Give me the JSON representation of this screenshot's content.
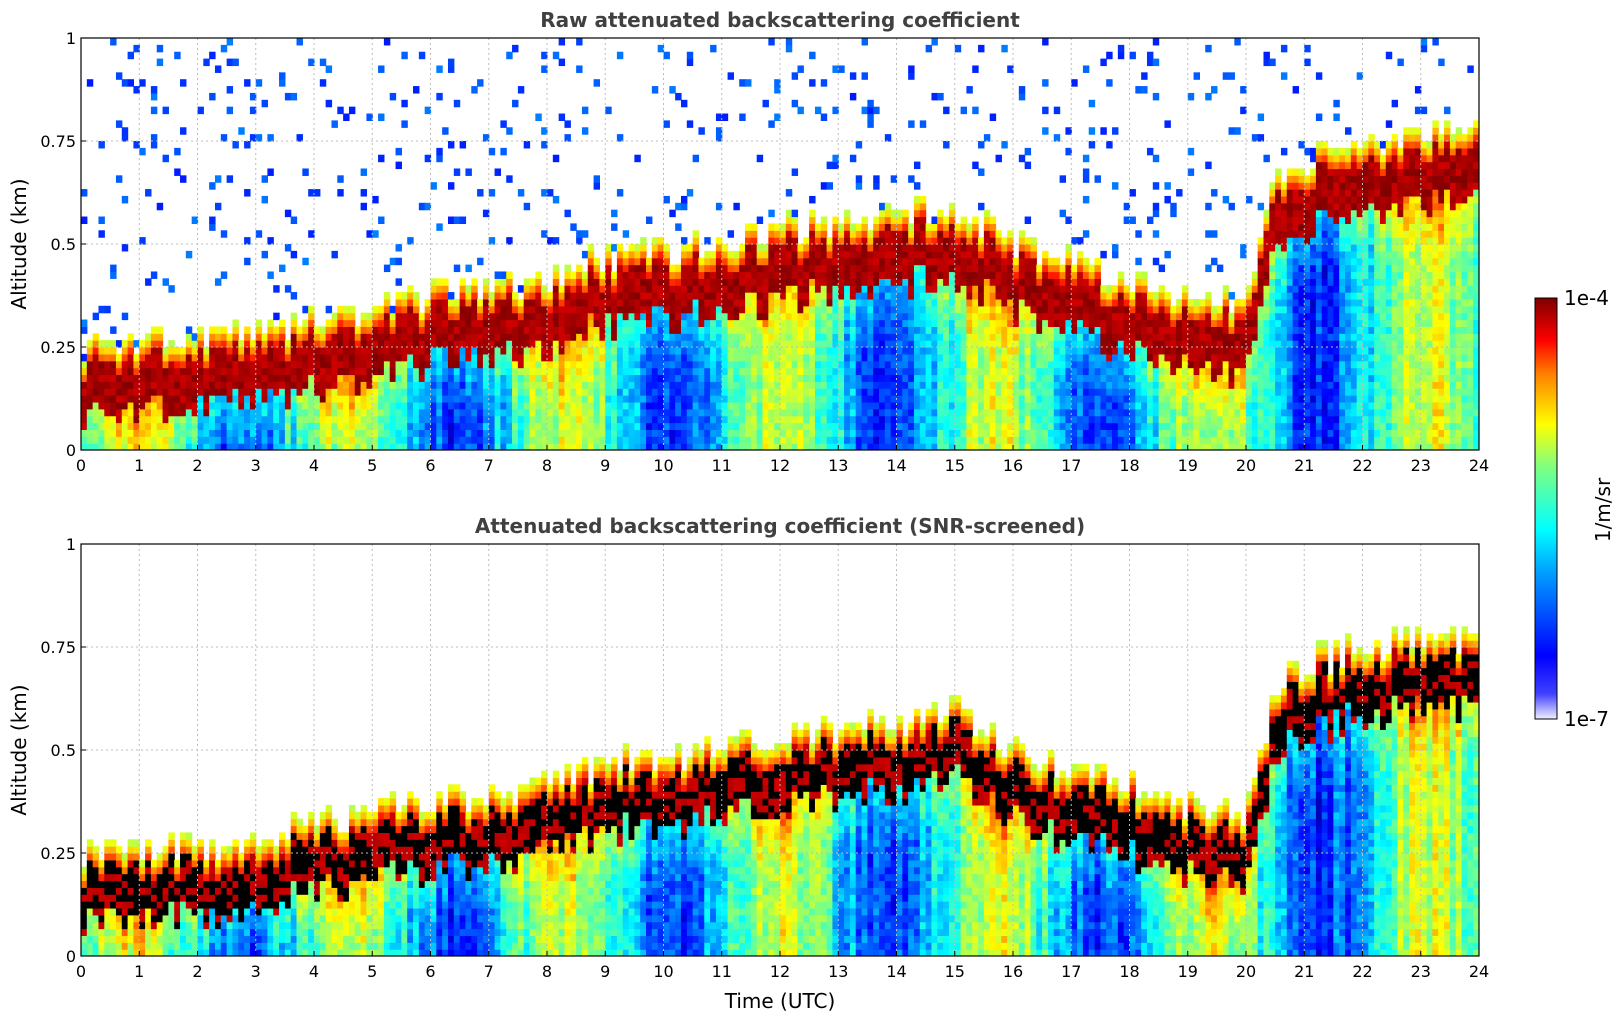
{
  "figure": {
    "colorbar": {
      "top_label": "1e-4",
      "bottom_label": "1e-7",
      "unit_label": "1/m/sr"
    },
    "colors": {
      "cmap": "jet",
      "low": "#f0f0ff",
      "high": "#7f0000",
      "saturated_screened": "#000000"
    }
  },
  "chart_data": [
    {
      "type": "heatmap",
      "title": "Raw attenuated backscattering coefficient",
      "xlabel": "",
      "ylabel": "Altitude (km)",
      "xlim": [
        0,
        24
      ],
      "ylim": [
        0,
        1
      ],
      "x_ticks": [
        "0",
        "1",
        "2",
        "3",
        "4",
        "5",
        "6",
        "7",
        "8",
        "9",
        "10",
        "11",
        "12",
        "13",
        "14",
        "15",
        "16",
        "17",
        "18",
        "19",
        "20",
        "21",
        "22",
        "23",
        "24"
      ],
      "y_ticks": [
        "0",
        "0.25",
        "0.5",
        "0.75",
        "1"
      ],
      "grid": true,
      "color_scale": "log",
      "color_range": [
        1e-07,
        0.0001
      ],
      "layer_top_km": [
        [
          0,
          0.2
        ],
        [
          2,
          0.22
        ],
        [
          3,
          0.24
        ],
        [
          4,
          0.27
        ],
        [
          5,
          0.3
        ],
        [
          6,
          0.33
        ],
        [
          7,
          0.34
        ],
        [
          8,
          0.37
        ],
        [
          9,
          0.42
        ],
        [
          10,
          0.44
        ],
        [
          11,
          0.46
        ],
        [
          12,
          0.49
        ],
        [
          13,
          0.5
        ],
        [
          14,
          0.52
        ],
        [
          15,
          0.55
        ],
        [
          16,
          0.46
        ],
        [
          17,
          0.4
        ],
        [
          18,
          0.37
        ],
        [
          19,
          0.32
        ],
        [
          20,
          0.3
        ],
        [
          20.5,
          0.6
        ],
        [
          21,
          0.66
        ],
        [
          22,
          0.7
        ],
        [
          23,
          0.72
        ],
        [
          24,
          0.72
        ]
      ],
      "snr_screened": false
    },
    {
      "type": "heatmap",
      "title": "Attenuated backscattering coefficient (SNR-screened)",
      "xlabel": "Time (UTC)",
      "ylabel": "Altitude (km)",
      "xlim": [
        0,
        24
      ],
      "ylim": [
        0,
        1
      ],
      "x_ticks": [
        "0",
        "1",
        "2",
        "3",
        "4",
        "5",
        "6",
        "7",
        "8",
        "9",
        "10",
        "11",
        "12",
        "13",
        "14",
        "15",
        "16",
        "17",
        "18",
        "19",
        "20",
        "21",
        "22",
        "23",
        "24"
      ],
      "y_ticks": [
        "0",
        "0.25",
        "0.5",
        "0.75",
        "1"
      ],
      "grid": true,
      "color_scale": "log",
      "color_range": [
        1e-07,
        0.0001
      ],
      "layer_top_km": [
        [
          0,
          0.2
        ],
        [
          2,
          0.22
        ],
        [
          3,
          0.24
        ],
        [
          4,
          0.27
        ],
        [
          5,
          0.3
        ],
        [
          6,
          0.33
        ],
        [
          7,
          0.34
        ],
        [
          8,
          0.37
        ],
        [
          9,
          0.42
        ],
        [
          10,
          0.44
        ],
        [
          11,
          0.46
        ],
        [
          12,
          0.49
        ],
        [
          13,
          0.5
        ],
        [
          14,
          0.52
        ],
        [
          15,
          0.55
        ],
        [
          16,
          0.46
        ],
        [
          17,
          0.4
        ],
        [
          18,
          0.37
        ],
        [
          19,
          0.32
        ],
        [
          20,
          0.3
        ],
        [
          20.5,
          0.6
        ],
        [
          21,
          0.66
        ],
        [
          22,
          0.7
        ],
        [
          23,
          0.72
        ],
        [
          24,
          0.72
        ]
      ],
      "snr_screened": true
    }
  ]
}
